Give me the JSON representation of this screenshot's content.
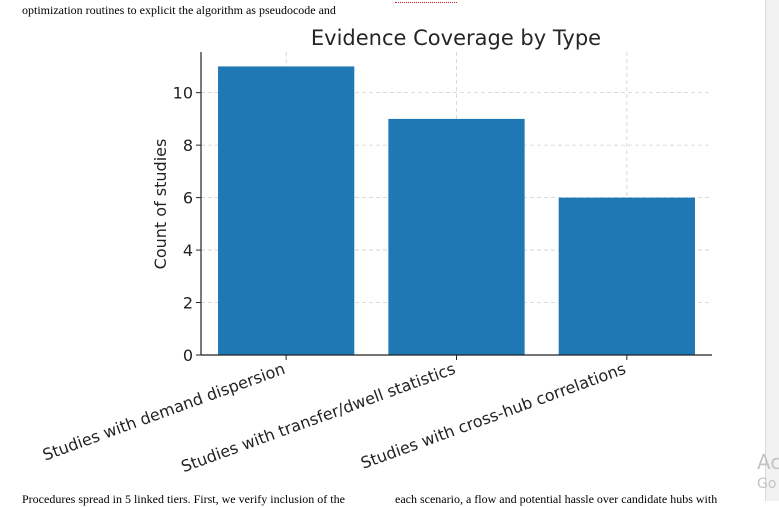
{
  "document": {
    "top_line": "optimization routines to explicit the algorithm as pseudocode and",
    "bottom_left": "Procedures spread in 5 linked tiers. First, we verify inclusion of the",
    "bottom_right": "each scenario, a flow and potential hassle over candidate hubs with"
  },
  "watermark": {
    "title": "Ac",
    "subtitle": "Go"
  },
  "chart_data": {
    "type": "bar",
    "title": "Evidence Coverage by Type",
    "xlabel": "",
    "ylabel": "Count of studies",
    "categories": [
      "Studies with demand dispersion",
      "Studies with transfer/dwell statistics",
      "Studies with cross-hub correlations"
    ],
    "values": [
      11,
      9,
      6
    ],
    "ylim": [
      0,
      11.55
    ],
    "yticks": [
      0,
      2,
      4,
      6,
      8,
      10
    ],
    "bar_color": "#1f77b4",
    "grid": true,
    "x_tick_rotation_deg": 20
  }
}
